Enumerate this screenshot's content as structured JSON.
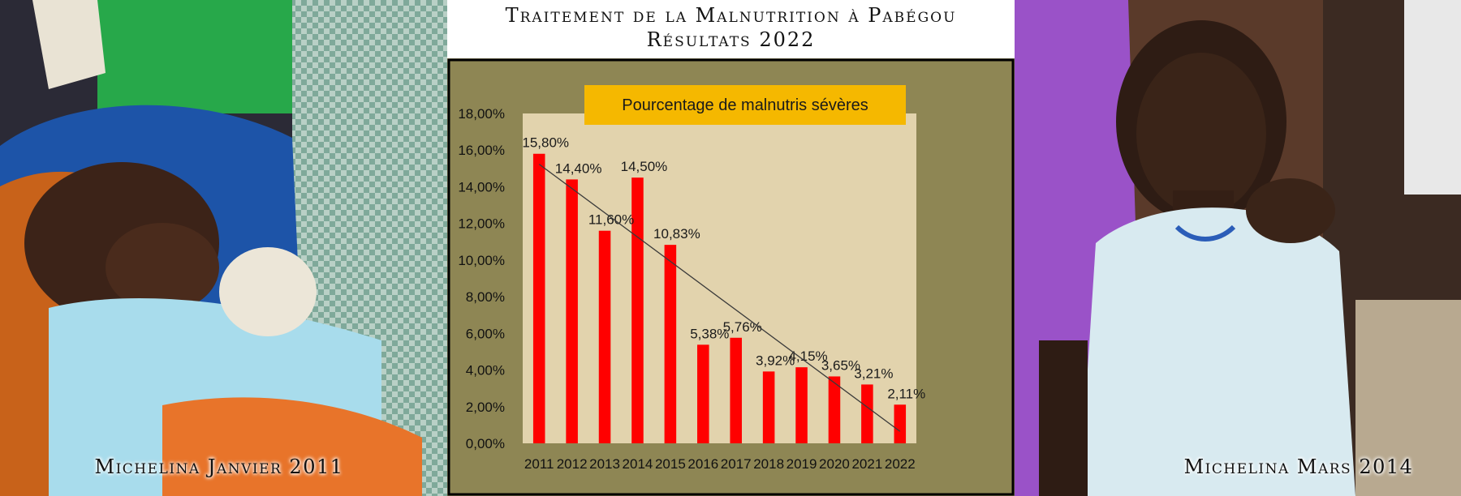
{
  "header": {
    "title_line_1": "Traitement de la Malnutrition à Pabégou",
    "title_line_2": "Résultats 2022"
  },
  "photos": {
    "left_caption": "Michelina Janvier 2011",
    "right_caption": "Michelina Mars 2014"
  },
  "colors": {
    "bar": "#ff0000",
    "panel": "#8e8654",
    "plot_area": "#e2d3ad",
    "legend_box": "#f5b800"
  },
  "chart_data": {
    "type": "bar",
    "title": "Pourcentage de  malnutris sévères",
    "categories": [
      "2011",
      "2012",
      "2013",
      "2014",
      "2015",
      "2016",
      "2017",
      "2018",
      "2019",
      "2020",
      "2021",
      "2022"
    ],
    "values": [
      15.8,
      14.4,
      11.6,
      14.5,
      10.83,
      5.38,
      5.76,
      3.92,
      4.15,
      3.65,
      3.21,
      2.11
    ],
    "data_labels": [
      "15,80%",
      "14,40%",
      "11,60%",
      "14,50%",
      "10,83%",
      "5,38%",
      "5,76%",
      "3,92%",
      "4,15%",
      "3,65%",
      "3,21%",
      "2,11%"
    ],
    "yticks": [
      0,
      2,
      4,
      6,
      8,
      10,
      12,
      14,
      16,
      18
    ],
    "ytick_labels": [
      "0,00%",
      "2,00%",
      "4,00%",
      "6,00%",
      "8,00%",
      "10,00%",
      "12,00%",
      "14,00%",
      "16,00%",
      "18,00%"
    ],
    "ylim": [
      0,
      18
    ],
    "trendline": "linear",
    "grid": false
  }
}
